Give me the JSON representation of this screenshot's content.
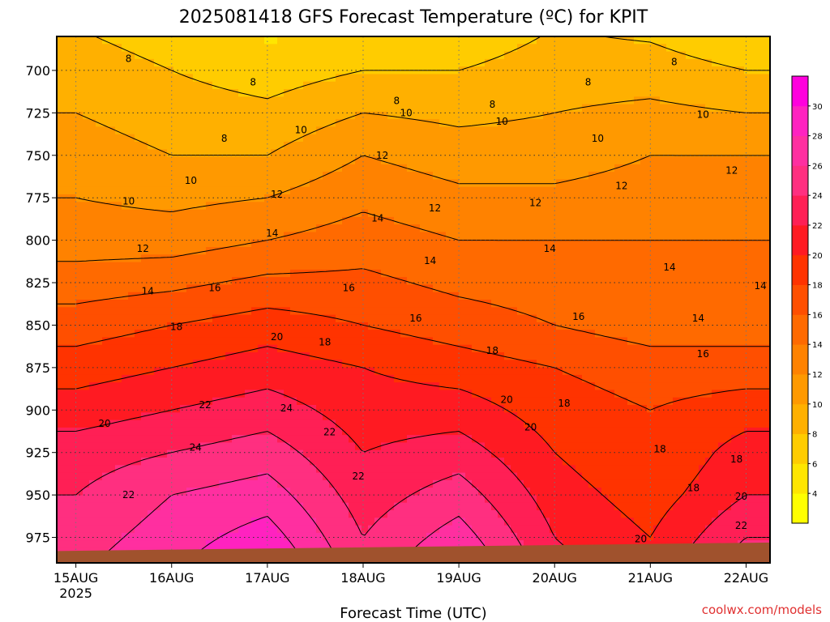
{
  "chart_data": {
    "type": "heatmap",
    "title": "2025081418 GFS Forecast Temperature (ºC) for KPIT",
    "xlabel": "Forecast Time (UTC)",
    "ylabel": "",
    "credit": "coolwx.com/models",
    "x_ticks": [
      {
        "label": "15AUG",
        "sublabel": "2025",
        "day": 0
      },
      {
        "label": "16AUG",
        "sublabel": "",
        "day": 1
      },
      {
        "label": "17AUG",
        "sublabel": "",
        "day": 2
      },
      {
        "label": "18AUG",
        "sublabel": "",
        "day": 3
      },
      {
        "label": "19AUG",
        "sublabel": "",
        "day": 4
      },
      {
        "label": "20AUG",
        "sublabel": "",
        "day": 5
      },
      {
        "label": "21AUG",
        "sublabel": "",
        "day": 6
      },
      {
        "label": "22AUG",
        "sublabel": "",
        "day": 7
      }
    ],
    "xlim_days": [
      -0.2,
      7.25
    ],
    "y_ticks": [
      700,
      725,
      750,
      775,
      800,
      825,
      850,
      875,
      900,
      925,
      950,
      975
    ],
    "ylim_hpa": [
      680,
      990
    ],
    "colorbar": {
      "levels": [
        2,
        4,
        6,
        8,
        10,
        12,
        14,
        16,
        18,
        20,
        22,
        24,
        26,
        28,
        30,
        32
      ],
      "tick_labels": [
        "4",
        "6",
        "8",
        "10",
        "12",
        "14",
        "16",
        "18",
        "20",
        "22",
        "24",
        "26",
        "28",
        "30"
      ],
      "colors": [
        "#ffff00",
        "#ffe600",
        "#ffcc00",
        "#ffb000",
        "#ff9900",
        "#ff8200",
        "#ff6a00",
        "#ff4f00",
        "#ff3300",
        "#ff1a22",
        "#ff1f55",
        "#ff2f80",
        "#ff2fa0",
        "#ff22c0",
        "#ff00dd"
      ]
    },
    "ground_color": "#a0522d",
    "series": [
      {
        "day": 0.0,
        "values": [
          [
            700,
            9
          ],
          [
            750,
            11
          ],
          [
            800,
            13
          ],
          [
            850,
            17
          ],
          [
            875,
            19
          ],
          [
            900,
            21
          ],
          [
            925,
            23
          ],
          [
            950,
            24
          ],
          [
            975,
            25
          ]
        ]
      },
      {
        "day": 1.0,
        "values": [
          [
            700,
            8
          ],
          [
            750,
            10
          ],
          [
            800,
            13
          ],
          [
            850,
            18
          ],
          [
            875,
            20
          ],
          [
            900,
            22
          ],
          [
            925,
            24
          ],
          [
            950,
            26
          ],
          [
            975,
            27
          ]
        ]
      },
      {
        "day": 2.0,
        "values": [
          [
            700,
            7
          ],
          [
            750,
            10
          ],
          [
            800,
            14
          ],
          [
            850,
            19
          ],
          [
            875,
            21
          ],
          [
            900,
            23
          ],
          [
            925,
            25
          ],
          [
            950,
            27
          ],
          [
            975,
            29
          ]
        ]
      },
      {
        "day": 3.0,
        "values": [
          [
            700,
            8
          ],
          [
            750,
            12
          ],
          [
            800,
            15
          ],
          [
            850,
            18
          ],
          [
            875,
            20
          ],
          [
            900,
            21
          ],
          [
            925,
            22
          ],
          [
            950,
            23
          ],
          [
            975,
            24
          ]
        ]
      },
      {
        "day": 4.0,
        "values": [
          [
            700,
            8
          ],
          [
            750,
            11
          ],
          [
            800,
            14
          ],
          [
            850,
            17
          ],
          [
            875,
            19
          ],
          [
            900,
            21
          ],
          [
            925,
            23
          ],
          [
            950,
            25
          ],
          [
            975,
            27
          ]
        ]
      },
      {
        "day": 5.0,
        "values": [
          [
            700,
            9
          ],
          [
            750,
            11
          ],
          [
            800,
            14
          ],
          [
            850,
            16
          ],
          [
            875,
            18
          ],
          [
            900,
            19
          ],
          [
            925,
            20
          ],
          [
            950,
            21
          ],
          [
            975,
            22
          ]
        ]
      },
      {
        "day": 6.0,
        "values": [
          [
            700,
            9
          ],
          [
            750,
            12
          ],
          [
            800,
            14
          ],
          [
            850,
            15
          ],
          [
            875,
            17
          ],
          [
            900,
            18
          ],
          [
            925,
            18
          ],
          [
            950,
            19
          ],
          [
            975,
            20
          ]
        ]
      },
      {
        "day": 7.0,
        "values": [
          [
            700,
            8
          ],
          [
            750,
            12
          ],
          [
            800,
            14
          ],
          [
            850,
            15
          ],
          [
            875,
            17
          ],
          [
            900,
            19
          ],
          [
            925,
            21
          ],
          [
            950,
            22
          ],
          [
            975,
            24
          ]
        ]
      }
    ],
    "contour_labels": [
      {
        "text": "8",
        "day": 0.55,
        "p": 693
      },
      {
        "text": "8",
        "day": 1.55,
        "p": 740
      },
      {
        "text": "8",
        "day": 1.85,
        "p": 707
      },
      {
        "text": "8",
        "day": 3.35,
        "p": 718
      },
      {
        "text": "8",
        "day": 4.35,
        "p": 720
      },
      {
        "text": "8",
        "day": 5.35,
        "p": 707
      },
      {
        "text": "8",
        "day": 6.25,
        "p": 695
      },
      {
        "text": "10",
        "day": 0.55,
        "p": 777
      },
      {
        "text": "10",
        "day": 1.2,
        "p": 765
      },
      {
        "text": "10",
        "day": 2.35,
        "p": 735
      },
      {
        "text": "10",
        "day": 3.45,
        "p": 725
      },
      {
        "text": "10",
        "day": 4.45,
        "p": 730
      },
      {
        "text": "10",
        "day": 5.45,
        "p": 740
      },
      {
        "text": "10",
        "day": 6.55,
        "p": 726
      },
      {
        "text": "12",
        "day": 0.7,
        "p": 805
      },
      {
        "text": "12",
        "day": 2.1,
        "p": 773
      },
      {
        "text": "12",
        "day": 3.2,
        "p": 750
      },
      {
        "text": "12",
        "day": 3.75,
        "p": 781
      },
      {
        "text": "12",
        "day": 4.8,
        "p": 778
      },
      {
        "text": "12",
        "day": 5.7,
        "p": 768
      },
      {
        "text": "12",
        "day": 6.85,
        "p": 759
      },
      {
        "text": "14",
        "day": 0.75,
        "p": 830
      },
      {
        "text": "14",
        "day": 2.05,
        "p": 796
      },
      {
        "text": "14",
        "day": 3.15,
        "p": 787
      },
      {
        "text": "14",
        "day": 3.7,
        "p": 812
      },
      {
        "text": "14",
        "day": 4.95,
        "p": 805
      },
      {
        "text": "14",
        "day": 6.2,
        "p": 816
      },
      {
        "text": "14",
        "day": 6.5,
        "p": 846
      },
      {
        "text": "14",
        "day": 7.15,
        "p": 827
      },
      {
        "text": "16",
        "day": 1.45,
        "p": 828
      },
      {
        "text": "16",
        "day": 2.85,
        "p": 828
      },
      {
        "text": "16",
        "day": 3.55,
        "p": 846
      },
      {
        "text": "16",
        "day": 5.25,
        "p": 845
      },
      {
        "text": "16",
        "day": 6.55,
        "p": 867
      },
      {
        "text": "18",
        "day": 1.05,
        "p": 851
      },
      {
        "text": "18",
        "day": 2.6,
        "p": 860
      },
      {
        "text": "18",
        "day": 4.35,
        "p": 865
      },
      {
        "text": "18",
        "day": 5.1,
        "p": 896
      },
      {
        "text": "18",
        "day": 6.1,
        "p": 923
      },
      {
        "text": "18",
        "day": 6.45,
        "p": 946
      },
      {
        "text": "18",
        "day": 6.9,
        "p": 929
      },
      {
        "text": "20",
        "day": 0.3,
        "p": 908
      },
      {
        "text": "20",
        "day": 2.1,
        "p": 857
      },
      {
        "text": "20",
        "day": 4.5,
        "p": 894
      },
      {
        "text": "20",
        "day": 4.75,
        "p": 910
      },
      {
        "text": "20",
        "day": 5.9,
        "p": 976
      },
      {
        "text": "20",
        "day": 6.95,
        "p": 951
      },
      {
        "text": "22",
        "day": 0.55,
        "p": 950
      },
      {
        "text": "22",
        "day": 1.35,
        "p": 897
      },
      {
        "text": "22",
        "day": 2.65,
        "p": 913
      },
      {
        "text": "22",
        "day": 2.95,
        "p": 939
      },
      {
        "text": "22",
        "day": 6.95,
        "p": 968
      },
      {
        "text": "24",
        "day": 1.25,
        "p": 922
      },
      {
        "text": "24",
        "day": 2.2,
        "p": 899
      }
    ]
  }
}
